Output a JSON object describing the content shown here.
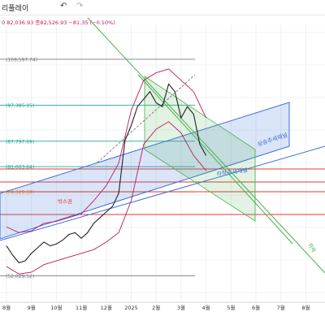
{
  "toolbar": {
    "title": "리플레이",
    "undo_icon": "undo-icon",
    "redo_icon": "redo-icon"
  },
  "ohlc_text": "0 82,036.93 종82,526.93 −81.35 (−0.10%)",
  "colors": {
    "uptrend_channel": "#3a6fd8",
    "downtrend_channel": "#4caf50",
    "price_line": "#222222",
    "bollinger": "#c2185b",
    "fib_teal": "#26a69a",
    "fib_orange": "#ff9800",
    "fib_gray": "#787b86",
    "support_red": "#e53935"
  },
  "chart_data": {
    "type": "line",
    "x_ticks": [
      "8월",
      "9월",
      "10월",
      "11월",
      "12월",
      "2025",
      "2월",
      "3월",
      "4월",
      "5월",
      "6월",
      "7월",
      "8월"
    ],
    "fib_levels": [
      {
        "label": "(109,597.74)",
        "value": 109597.74
      },
      {
        "label": "(97,385.15)",
        "value": 97385.15
      },
      {
        "label": "(87,797.69)",
        "value": 87797.69
      },
      {
        "label": "(81,063.64)",
        "value": 81063.64
      },
      {
        "label": "(74,329.59)",
        "value": 74329.59
      },
      {
        "label": "(52,029.52)",
        "value": 52029.52
      }
    ],
    "ylim": [
      45000,
      118000
    ],
    "annotations": [
      {
        "text": "상승추세채널"
      },
      {
        "text": "하락추세채널"
      },
      {
        "text": "박스권"
      },
      {
        "text": "하락"
      }
    ],
    "price_series": {
      "x": [
        0,
        0.25,
        0.5,
        0.75,
        1,
        1.25,
        1.5,
        1.75,
        2,
        2.25,
        2.5,
        2.75,
        3,
        3.25,
        3.5,
        3.75,
        4,
        4.25,
        4.5,
        4.75,
        5,
        5.25,
        5.5,
        5.75,
        6,
        6.25,
        6.5,
        6.75,
        7,
        7.25,
        7.5,
        7.75,
        8
      ],
      "values": [
        60000,
        57500,
        55500,
        56000,
        58000,
        59500,
        61000,
        60000,
        60500,
        61500,
        63000,
        63500,
        62000,
        63500,
        66000,
        67500,
        69000,
        70500,
        74000,
        88000,
        92000,
        97000,
        99000,
        101000,
        98000,
        97000,
        103000,
        101000,
        94000,
        97000,
        95000,
        87000,
        84000
      ]
    },
    "bollinger_upper": {
      "x": [
        0,
        0.5,
        1,
        1.5,
        2,
        2.5,
        3,
        3.5,
        4,
        4.5,
        5,
        5.5,
        6,
        6.5,
        7,
        7.5,
        8
      ],
      "values": [
        65000,
        63500,
        64000,
        66000,
        66500,
        67500,
        68500,
        72000,
        76000,
        82000,
        96000,
        104000,
        106000,
        107000,
        104000,
        101000,
        94000
      ]
    },
    "bollinger_lower": {
      "x": [
        0,
        0.5,
        1,
        1.5,
        2,
        2.5,
        3,
        3.5,
        4,
        4.5,
        5,
        5.5,
        6,
        6.5,
        7,
        7.5,
        8
      ],
      "values": [
        54500,
        52500,
        53000,
        55000,
        56000,
        57000,
        58000,
        59000,
        61000,
        63500,
        72000,
        87000,
        91000,
        93000,
        90000,
        84000,
        80000
      ]
    }
  }
}
